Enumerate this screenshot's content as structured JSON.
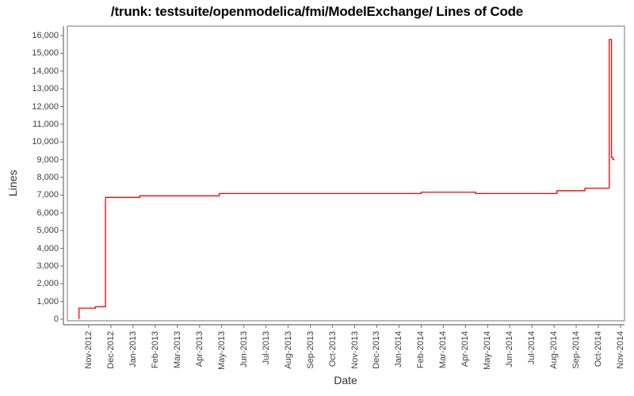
{
  "title": "/trunk: testsuite/openmodelica/fmi/ModelExchange/ Lines of Code",
  "colors": {
    "series_line": "#ff0000",
    "plot_border": "#8c8c8c",
    "axis_line": "#6e6e6e",
    "tick_text": "#3f3f3f",
    "title_text": "#000000",
    "background": "#ffffff"
  },
  "chart_data": {
    "type": "line",
    "subtype": "step",
    "title": "/trunk: testsuite/openmodelica/fmi/ModelExchange/ Lines of Code",
    "xlabel": "Date",
    "ylabel": "Lines",
    "grid": false,
    "legend": null,
    "ylim": [
      0,
      16000
    ],
    "y_tick_step": 1000,
    "y_ticks": [
      0,
      1000,
      2000,
      3000,
      4000,
      5000,
      6000,
      7000,
      8000,
      9000,
      10000,
      11000,
      12000,
      13000,
      14000,
      15000,
      16000
    ],
    "x_ticks": [
      "Nov-2012",
      "Dec-2012",
      "Jan-2013",
      "Feb-2013",
      "Mar-2013",
      "Apr-2013",
      "May-2013",
      "Jun-2013",
      "Jul-2013",
      "Aug-2013",
      "Sep-2013",
      "Oct-2013",
      "Nov-2013",
      "Dec-2013",
      "Jan-2014",
      "Feb-2014",
      "Mar-2014",
      "Apr-2014",
      "May-2014",
      "Jun-2014",
      "Jul-2014",
      "Aug-2014",
      "Sep-2014",
      "Oct-2014",
      "Nov-2014"
    ],
    "series": [
      {
        "name": "Lines of Code",
        "color": "#ff0000",
        "points": [
          [
            "2012-10-18",
            0
          ],
          [
            "2012-10-18",
            620
          ],
          [
            "2012-11-10",
            700
          ],
          [
            "2012-11-24",
            6870
          ],
          [
            "2013-01-10",
            6960
          ],
          [
            "2013-04-28",
            7090
          ],
          [
            "2014-02-01",
            7170
          ],
          [
            "2014-04-15",
            7090
          ],
          [
            "2014-08-05",
            7250
          ],
          [
            "2014-09-13",
            7390
          ],
          [
            "2014-10-16",
            15780
          ],
          [
            "2014-10-19",
            9120
          ],
          [
            "2014-10-21",
            9000
          ]
        ]
      }
    ]
  }
}
